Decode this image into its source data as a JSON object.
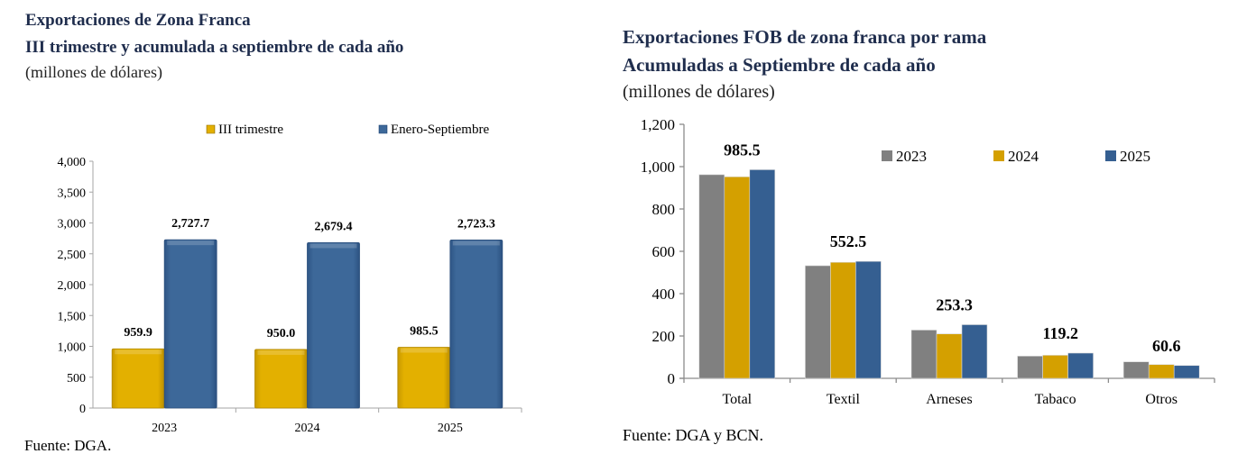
{
  "left": {
    "title": "Exportaciones de Zona Franca",
    "subtitle": "III trimestre y acumulada a septiembre de cada año",
    "units": "(millones de dólares)",
    "source": "Fuente: DGA."
  },
  "right": {
    "title": "Exportaciones FOB de zona franca por rama",
    "subtitle": "Acumuladas a Septiembre de cada año",
    "units": "(millones de dólares)",
    "source": "Fuente: DGA y BCN."
  },
  "chart_data": [
    {
      "type": "bar",
      "title": "Exportaciones de Zona Franca",
      "subtitle": "III trimestre y acumulada a septiembre de cada año",
      "ylabel": "millones de dólares",
      "xlabel": "",
      "categories": [
        "2023",
        "2024",
        "2025"
      ],
      "series": [
        {
          "name": "III trimestre",
          "values": [
            959.9,
            950.0,
            985.5
          ],
          "labels": [
            "959.9",
            "950.0",
            "985.5"
          ],
          "color": "#e0ac00"
        },
        {
          "name": "Enero-Septiembre",
          "values": [
            2727.7,
            2679.4,
            2723.3
          ],
          "labels": [
            "2,727.7",
            "2,679.4",
            "2,723.3"
          ],
          "color": "#3a6698"
        }
      ],
      "ylim": [
        0,
        4000
      ],
      "yticks": [
        0,
        500,
        1000,
        1500,
        2000,
        2500,
        3000,
        3500,
        4000
      ],
      "ytick_labels": [
        "0",
        "500",
        "1,000",
        "1,500",
        "2,000",
        "2,500",
        "3,000",
        "3,500",
        "4,000"
      ],
      "grid": false,
      "legend": "top"
    },
    {
      "type": "bar",
      "title": "Exportaciones FOB de zona franca por rama",
      "subtitle": "Acumuladas a Septiembre de cada año",
      "ylabel": "millones de dólares",
      "xlabel": "",
      "categories": [
        "Total",
        "Textil",
        "Arneses",
        "Tabaco",
        "Otros"
      ],
      "series": [
        {
          "name": "2023",
          "values": [
            962,
            532,
            228,
            105,
            78
          ],
          "color": "#808080"
        },
        {
          "name": "2024",
          "values": [
            952,
            548,
            210,
            109,
            65
          ],
          "color": "#d4a000"
        },
        {
          "name": "2025",
          "values": [
            985.5,
            552.5,
            253.3,
            119.2,
            60.6
          ],
          "color": "#355f91"
        }
      ],
      "data_labels": {
        "series": "2025",
        "labels": [
          "985.5",
          "552.5",
          "253.3",
          "119.2",
          "60.6"
        ]
      },
      "ylim": [
        0,
        1200
      ],
      "yticks": [
        0,
        200,
        400,
        600,
        800,
        1000,
        1200
      ],
      "ytick_labels": [
        "0",
        "200",
        "400",
        "600",
        "800",
        "1,000",
        "1,200"
      ],
      "grid": false,
      "legend": "top-right"
    }
  ]
}
